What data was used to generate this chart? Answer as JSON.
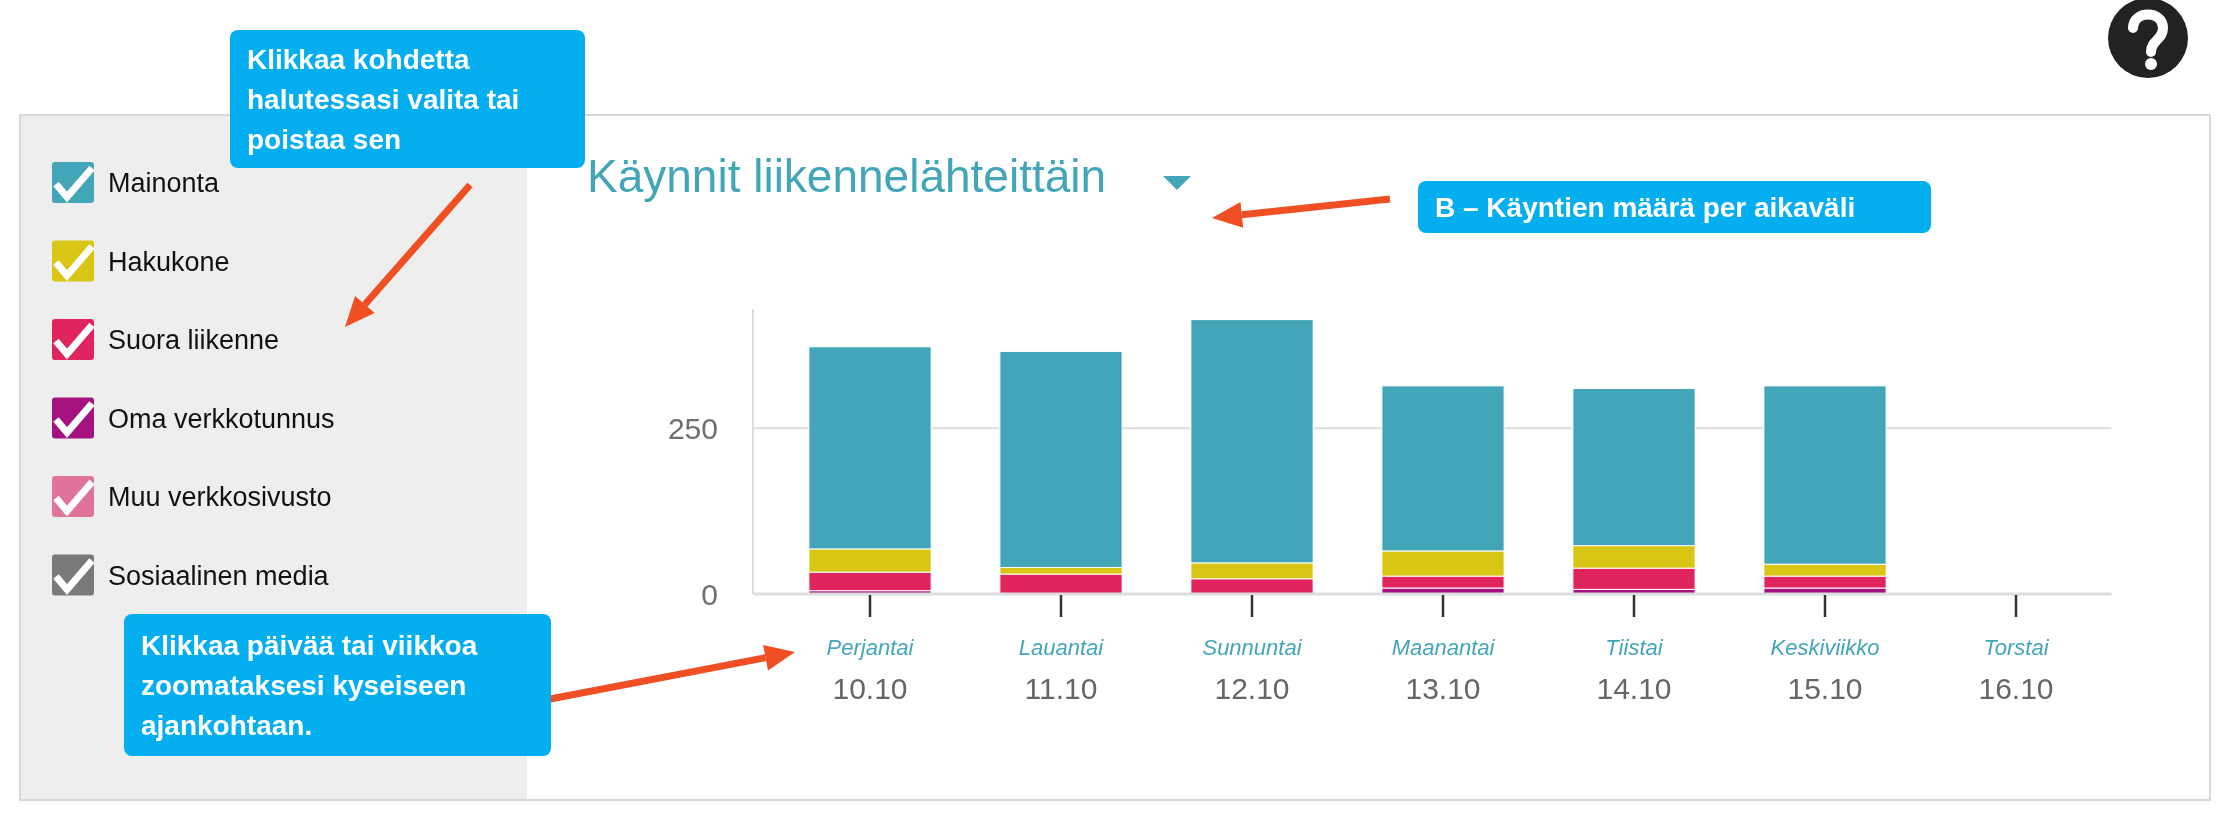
{
  "chart_data": {
    "type": "bar",
    "title": "Käynnit liikennelähteittäin",
    "stacked": true,
    "legend": "left",
    "grid": "y",
    "categories": [
      "Perjantai\n10.10",
      "Lauantai\n11.10",
      "Sunnuntai\n12.10",
      "Maanantai\n13.10",
      "Tiistai\n14.10",
      "Keskiviikko\n15.10",
      "Torstai\n16.10"
    ],
    "ylim": [
      0,
      430
    ],
    "yticks": [
      0,
      250
    ],
    "series": [
      {
        "name": "Sosiaalinen media",
        "color": "#7a7a7a",
        "values": [
          null,
          null,
          null,
          null,
          null,
          null,
          null
        ]
      },
      {
        "name": "Muu verkkosivusto",
        "color": "#e0739b",
        "values": [
          null,
          null,
          null,
          null,
          null,
          null,
          null
        ]
      },
      {
        "name": "Oma verkkotunnus",
        "color": "#a3127f",
        "values": [
          5,
          0,
          0,
          9,
          7,
          9,
          0
        ]
      },
      {
        "name": "Suora liikenne",
        "color": "#e0245e",
        "values": [
          28,
          30,
          23,
          18,
          32,
          18,
          0
        ]
      },
      {
        "name": "Hakukone",
        "color": "#d9c614",
        "values": [
          35,
          10,
          24,
          38,
          34,
          18,
          0
        ]
      },
      {
        "name": "Mainonta",
        "color": "#43a5b8",
        "values": [
          305,
          326,
          367,
          249,
          237,
          269,
          0
        ]
      }
    ],
    "annotations": [
      "Klikkaa kohdetta halutessasi valita tai poistaa sen",
      "B – Käyntien määrä per aikaväli",
      "Klikkaa päivää tai viikkoa zoomataksesi kyseiseen ajankohtaan."
    ]
  }
}
